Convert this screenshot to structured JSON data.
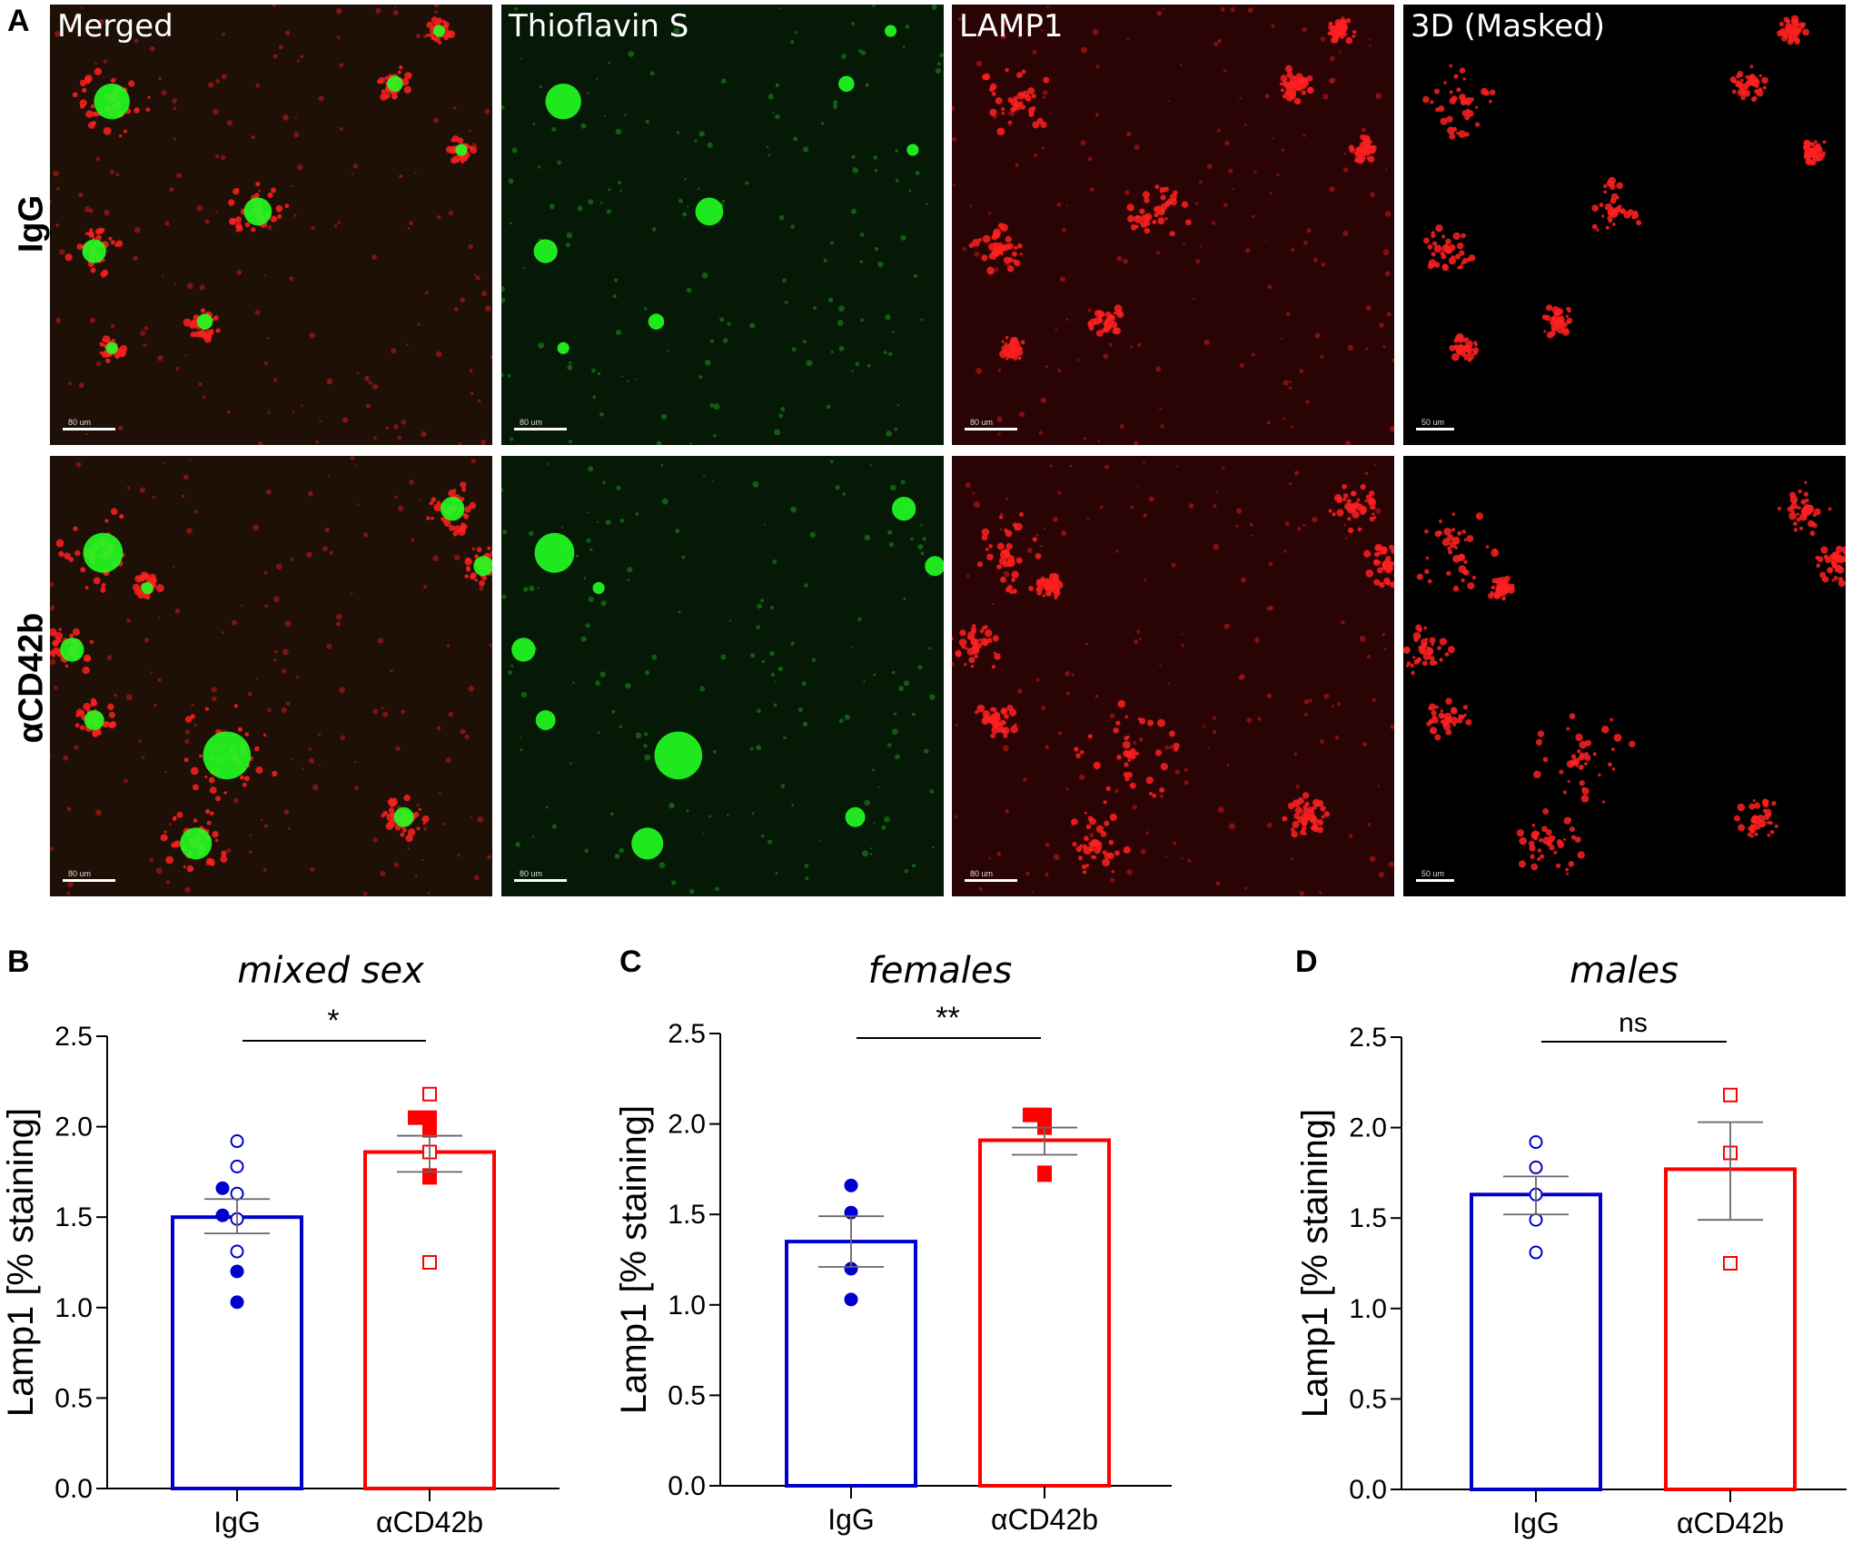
{
  "panel_letters": {
    "a": "A",
    "b": "B",
    "c": "C",
    "d": "D"
  },
  "rows": [
    "IgG",
    "αCD42b"
  ],
  "columns": [
    "Merged",
    "Thioflavin S",
    "LAMP1",
    "3D (Masked)"
  ],
  "scale_bars": [
    "80 um",
    "80 um",
    "80 um",
    "50 um"
  ],
  "colors": {
    "igg": "#0000cc",
    "cd42b": "#ff0000",
    "green": "#22ff22",
    "red": "#ff2020"
  },
  "chart_data": [
    {
      "type": "bar",
      "panel": "B",
      "title": "mixed sex",
      "ylabel": "Lamp1 [% staining]",
      "categories": [
        "IgG",
        "αCD42b"
      ],
      "ylim": [
        0,
        2.5
      ],
      "yticks": [
        "0.0",
        "0.5",
        "1.0",
        "1.5",
        "2.0",
        "2.5"
      ],
      "significance": "*",
      "series": [
        {
          "name": "IgG",
          "mean": 1.5,
          "sem_low": 1.41,
          "sem_high": 1.6,
          "points_open": [
            1.92,
            1.78,
            1.63,
            1.49,
            1.31
          ],
          "points_filled": [
            1.66,
            1.51,
            1.2,
            1.03
          ]
        },
        {
          "name": "αCD42b",
          "mean": 1.86,
          "sem_low": 1.75,
          "sem_high": 1.95,
          "points_open": [
            2.18,
            1.86,
            1.25
          ],
          "points_filled": [
            2.05,
            2.05,
            1.98,
            1.73,
            1.72
          ]
        }
      ]
    },
    {
      "type": "bar",
      "panel": "C",
      "title": "females",
      "ylabel": "Lamp1 [% staining]",
      "categories": [
        "IgG",
        "αCD42b"
      ],
      "ylim": [
        0,
        2.5
      ],
      "yticks": [
        "0.0",
        "0.5",
        "1.0",
        "1.5",
        "2.0",
        "2.5"
      ],
      "significance": "**",
      "series": [
        {
          "name": "IgG",
          "mean": 1.35,
          "sem_low": 1.21,
          "sem_high": 1.49,
          "points_open": [],
          "points_filled": [
            1.66,
            1.51,
            1.2,
            1.03
          ]
        },
        {
          "name": "αCD42b",
          "mean": 1.91,
          "sem_low": 1.83,
          "sem_high": 1.98,
          "points_open": [],
          "points_filled": [
            2.05,
            2.05,
            1.98,
            1.73,
            1.72
          ]
        }
      ]
    },
    {
      "type": "bar",
      "panel": "D",
      "title": "males",
      "ylabel": "Lamp1 [% staining]",
      "categories": [
        "IgG",
        "αCD42b"
      ],
      "ylim": [
        0,
        2.5
      ],
      "yticks": [
        "0.0",
        "0.5",
        "1.0",
        "1.5",
        "2.0",
        "2.5"
      ],
      "significance": "ns",
      "series": [
        {
          "name": "IgG",
          "mean": 1.63,
          "sem_low": 1.52,
          "sem_high": 1.73,
          "points_open": [
            1.92,
            1.78,
            1.63,
            1.49,
            1.31
          ],
          "points_filled": []
        },
        {
          "name": "αCD42b",
          "mean": 1.77,
          "sem_low": 1.49,
          "sem_high": 2.03,
          "points_open": [
            2.18,
            1.86,
            1.25
          ],
          "points_filled": []
        }
      ]
    }
  ]
}
